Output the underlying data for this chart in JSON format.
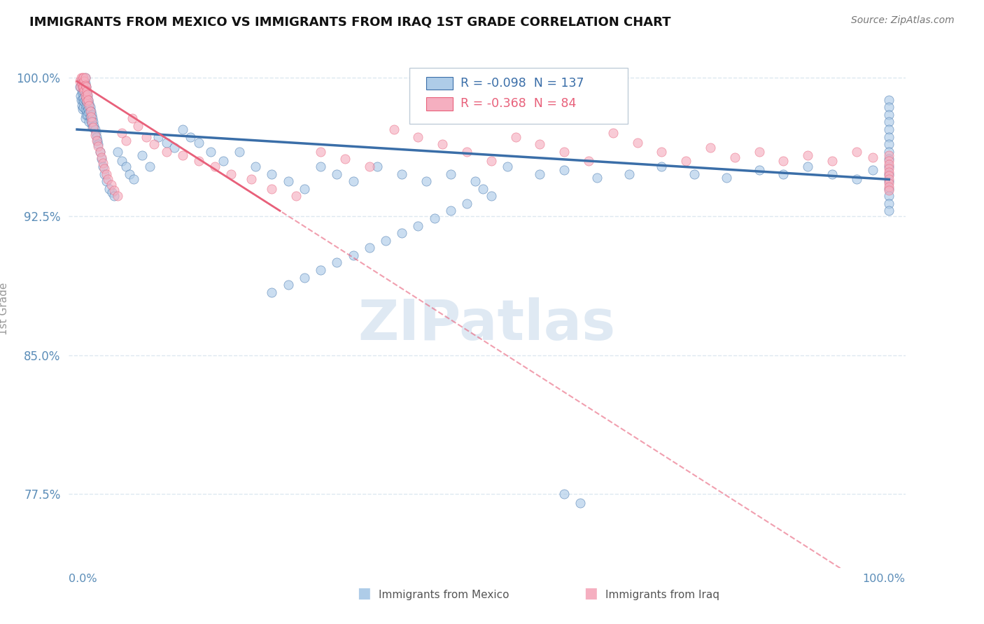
{
  "title": "IMMIGRANTS FROM MEXICO VS IMMIGRANTS FROM IRAQ 1ST GRADE CORRELATION CHART",
  "source": "Source: ZipAtlas.com",
  "ylabel": "1st Grade",
  "legend_mexico_R": -0.098,
  "legend_mexico_N": 137,
  "legend_iraq_R": -0.368,
  "legend_iraq_N": 84,
  "yticks": [
    0.775,
    0.85,
    0.925,
    1.0
  ],
  "ytick_labels": [
    "77.5%",
    "85.0%",
    "92.5%",
    "100.0%"
  ],
  "xlim": [
    0.0,
    1.0
  ],
  "ylim": [
    0.735,
    1.015
  ],
  "watermark": "ZIPatlas",
  "watermark_color": "#c5d8ea",
  "title_color": "#111111",
  "axis_color": "#5b8db8",
  "scatter_mexico_color": "#aecce8",
  "scatter_iraq_color": "#f5afc0",
  "trendline_mexico_color": "#3a6ea8",
  "trendline_iraq_color": "#e8607a",
  "background_color": "#ffffff",
  "grid_color": "#dde8f0",
  "legend_border_color": "#c0ccd8",
  "bottom_legend_mexico": "Immigrants from Mexico",
  "bottom_legend_iraq": "Immigrants from Iraq",
  "mexico_x": [
    0.003,
    0.004,
    0.005,
    0.005,
    0.006,
    0.006,
    0.006,
    0.007,
    0.007,
    0.007,
    0.007,
    0.008,
    0.008,
    0.008,
    0.008,
    0.009,
    0.009,
    0.009,
    0.01,
    0.01,
    0.01,
    0.01,
    0.01,
    0.01,
    0.011,
    0.011,
    0.011,
    0.011,
    0.012,
    0.012,
    0.012,
    0.013,
    0.013,
    0.013,
    0.014,
    0.014,
    0.015,
    0.015,
    0.015,
    0.016,
    0.016,
    0.017,
    0.017,
    0.018,
    0.018,
    0.019,
    0.019,
    0.02,
    0.021,
    0.022,
    0.023,
    0.024,
    0.025,
    0.026,
    0.028,
    0.03,
    0.032,
    0.034,
    0.036,
    0.04,
    0.043,
    0.046,
    0.05,
    0.055,
    0.06,
    0.065,
    0.07,
    0.08,
    0.09,
    0.1,
    0.11,
    0.12,
    0.13,
    0.14,
    0.15,
    0.165,
    0.18,
    0.2,
    0.22,
    0.24,
    0.26,
    0.28,
    0.3,
    0.32,
    0.34,
    0.37,
    0.4,
    0.43,
    0.46,
    0.49,
    0.53,
    0.57,
    0.6,
    0.64,
    0.68,
    0.72,
    0.76,
    0.8,
    0.84,
    0.87,
    0.9,
    0.93,
    0.96,
    0.98,
    1.0,
    1.0,
    1.0,
    1.0,
    1.0,
    1.0,
    1.0,
    1.0,
    1.0,
    1.0,
    1.0,
    1.0,
    1.0,
    1.0,
    1.0,
    1.0,
    0.6,
    0.62,
    0.5,
    0.51,
    0.48,
    0.46,
    0.44,
    0.42,
    0.4,
    0.38,
    0.36,
    0.34,
    0.32,
    0.3,
    0.28,
    0.26,
    0.24
  ],
  "mexico_y": [
    0.995,
    0.99,
    0.998,
    0.988,
    0.996,
    0.992,
    0.985,
    0.997,
    0.993,
    0.988,
    0.983,
    0.999,
    0.994,
    0.989,
    0.984,
    0.998,
    0.993,
    0.987,
    1.0,
    0.997,
    0.993,
    0.988,
    0.983,
    0.978,
    0.995,
    0.99,
    0.985,
    0.98,
    0.992,
    0.987,
    0.982,
    0.99,
    0.985,
    0.98,
    0.988,
    0.983,
    0.986,
    0.981,
    0.976,
    0.984,
    0.979,
    0.982,
    0.977,
    0.98,
    0.975,
    0.978,
    0.973,
    0.976,
    0.974,
    0.972,
    0.97,
    0.968,
    0.966,
    0.964,
    0.96,
    0.956,
    0.952,
    0.948,
    0.944,
    0.94,
    0.938,
    0.936,
    0.96,
    0.955,
    0.952,
    0.948,
    0.945,
    0.958,
    0.952,
    0.968,
    0.965,
    0.962,
    0.972,
    0.968,
    0.965,
    0.96,
    0.955,
    0.96,
    0.952,
    0.948,
    0.944,
    0.94,
    0.952,
    0.948,
    0.944,
    0.952,
    0.948,
    0.944,
    0.948,
    0.944,
    0.952,
    0.948,
    0.95,
    0.946,
    0.948,
    0.952,
    0.948,
    0.946,
    0.95,
    0.948,
    0.952,
    0.948,
    0.945,
    0.95,
    0.988,
    0.984,
    0.98,
    0.976,
    0.972,
    0.968,
    0.964,
    0.96,
    0.956,
    0.952,
    0.948,
    0.944,
    0.94,
    0.936,
    0.932,
    0.928,
    0.775,
    0.77,
    0.94,
    0.936,
    0.932,
    0.928,
    0.924,
    0.92,
    0.916,
    0.912,
    0.908,
    0.904,
    0.9,
    0.896,
    0.892,
    0.888,
    0.884
  ],
  "iraq_x": [
    0.003,
    0.004,
    0.005,
    0.006,
    0.007,
    0.007,
    0.008,
    0.008,
    0.009,
    0.009,
    0.01,
    0.01,
    0.01,
    0.011,
    0.011,
    0.012,
    0.012,
    0.013,
    0.014,
    0.015,
    0.016,
    0.017,
    0.018,
    0.02,
    0.022,
    0.024,
    0.026,
    0.028,
    0.03,
    0.032,
    0.034,
    0.036,
    0.038,
    0.042,
    0.046,
    0.05,
    0.055,
    0.06,
    0.068,
    0.075,
    0.085,
    0.095,
    0.11,
    0.13,
    0.15,
    0.17,
    0.19,
    0.215,
    0.24,
    0.27,
    0.3,
    0.33,
    0.36,
    0.39,
    0.42,
    0.45,
    0.48,
    0.51,
    0.54,
    0.57,
    0.6,
    0.63,
    0.66,
    0.69,
    0.72,
    0.75,
    0.78,
    0.81,
    0.84,
    0.87,
    0.9,
    0.93,
    0.96,
    0.98,
    1.0,
    1.0,
    1.0,
    1.0,
    1.0,
    1.0,
    1.0,
    1.0,
    1.0,
    1.0
  ],
  "iraq_y": [
    0.998,
    0.995,
    1.0,
    0.997,
    1.0,
    0.995,
    1.0,
    0.995,
    0.998,
    0.993,
    1.0,
    0.996,
    0.99,
    0.995,
    0.989,
    0.993,
    0.987,
    0.991,
    0.988,
    0.985,
    0.982,
    0.979,
    0.976,
    0.973,
    0.969,
    0.966,
    0.963,
    0.96,
    0.957,
    0.954,
    0.951,
    0.948,
    0.945,
    0.942,
    0.939,
    0.936,
    0.97,
    0.966,
    0.978,
    0.974,
    0.968,
    0.964,
    0.96,
    0.958,
    0.955,
    0.952,
    0.948,
    0.945,
    0.94,
    0.936,
    0.96,
    0.956,
    0.952,
    0.972,
    0.968,
    0.964,
    0.96,
    0.955,
    0.968,
    0.964,
    0.96,
    0.955,
    0.97,
    0.965,
    0.96,
    0.955,
    0.962,
    0.957,
    0.96,
    0.955,
    0.958,
    0.955,
    0.96,
    0.957,
    0.958,
    0.955,
    0.953,
    0.951,
    0.949,
    0.947,
    0.945,
    0.943,
    0.941,
    0.939
  ]
}
